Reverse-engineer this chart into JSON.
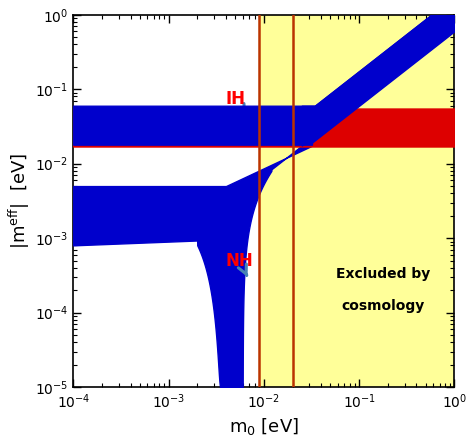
{
  "xlim": [
    0.0001,
    1.0
  ],
  "ylim": [
    1e-05,
    1.0
  ],
  "xlabel": "m_0 [eV]",
  "ylabel": "|m^{eff}|  [eV]",
  "vline1": 0.009,
  "vline2": 0.02,
  "vline_color": "#bb3300",
  "yellow_color": "#ffff99",
  "blue_color": "#0000cc",
  "red_color": "#dd0000",
  "red_band_low": 0.017,
  "red_band_high": 0.055,
  "figsize": [
    4.74,
    4.44
  ],
  "dpi": 100
}
